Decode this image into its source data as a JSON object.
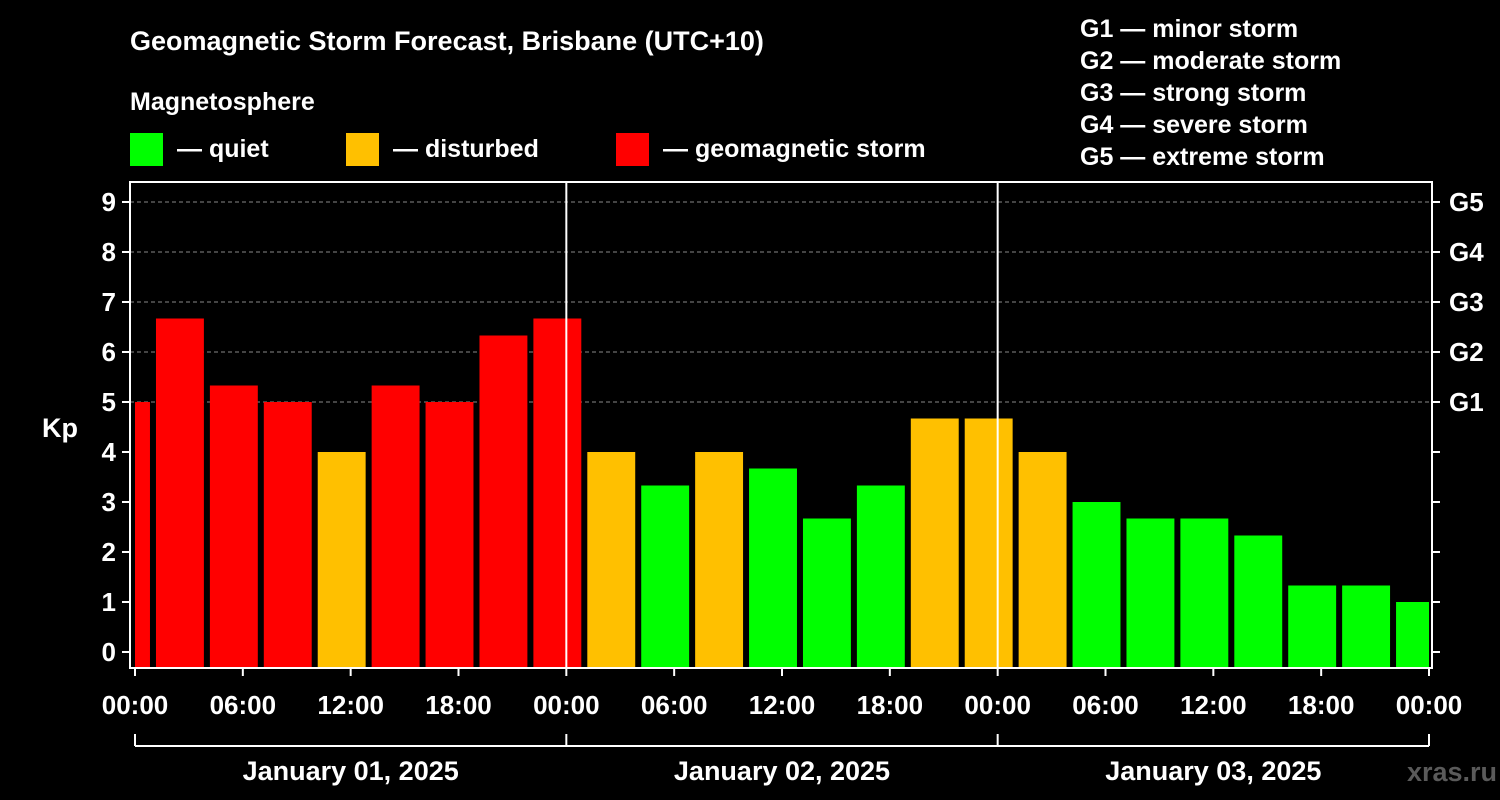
{
  "title": "Geomagnetic Storm Forecast, Brisbane (UTC+10)",
  "legend": {
    "heading": "Magnetosphere",
    "items": [
      {
        "label": "— quiet",
        "color": "#00ff00"
      },
      {
        "label": "— disturbed",
        "color": "#ffc000"
      },
      {
        "label": "— geomagnetic storm",
        "color": "#ff0000"
      }
    ]
  },
  "g_scale": [
    "G1 — minor storm",
    "G2 — moderate storm",
    "G3 — strong storm",
    "G4 — severe storm",
    "G5 — extreme storm"
  ],
  "watermark": "xras.ru",
  "chart_data": {
    "type": "bar",
    "ylabel": "Kp",
    "ylim": [
      0,
      9
    ],
    "yticks": [
      0,
      1,
      2,
      3,
      4,
      5,
      6,
      7,
      8,
      9
    ],
    "right_ticks": [
      {
        "value": 5,
        "label": "G1"
      },
      {
        "value": 6,
        "label": "G2"
      },
      {
        "value": 7,
        "label": "G3"
      },
      {
        "value": 8,
        "label": "G4"
      },
      {
        "value": 9,
        "label": "G5"
      }
    ],
    "grid": true,
    "xlim_hours": [
      0,
      72
    ],
    "xticks_hours": [
      0,
      6,
      12,
      18,
      24,
      30,
      36,
      42,
      48,
      54,
      60,
      66,
      72
    ],
    "xtick_labels": [
      "00:00",
      "06:00",
      "12:00",
      "18:00",
      "00:00",
      "06:00",
      "12:00",
      "18:00",
      "00:00",
      "06:00",
      "12:00",
      "18:00",
      "00:00"
    ],
    "days": [
      {
        "label": "January 01, 2025",
        "start_hour": 0,
        "end_hour": 24
      },
      {
        "label": "January 02, 2025",
        "start_hour": 24,
        "end_hour": 48
      },
      {
        "label": "January 03, 2025",
        "start_hour": 48,
        "end_hour": 72
      }
    ],
    "bars": [
      {
        "start_hour": 0,
        "end_hour": 1,
        "kp": 5.0,
        "level": "storm"
      },
      {
        "start_hour": 1,
        "end_hour": 4,
        "kp": 6.67,
        "level": "storm"
      },
      {
        "start_hour": 4,
        "end_hour": 7,
        "kp": 5.33,
        "level": "storm"
      },
      {
        "start_hour": 7,
        "end_hour": 10,
        "kp": 5.0,
        "level": "storm"
      },
      {
        "start_hour": 10,
        "end_hour": 13,
        "kp": 4.0,
        "level": "disturbed"
      },
      {
        "start_hour": 13,
        "end_hour": 16,
        "kp": 5.33,
        "level": "storm"
      },
      {
        "start_hour": 16,
        "end_hour": 19,
        "kp": 5.0,
        "level": "storm"
      },
      {
        "start_hour": 19,
        "end_hour": 22,
        "kp": 6.33,
        "level": "storm"
      },
      {
        "start_hour": 22,
        "end_hour": 25,
        "kp": 6.67,
        "level": "storm"
      },
      {
        "start_hour": 25,
        "end_hour": 28,
        "kp": 4.0,
        "level": "disturbed"
      },
      {
        "start_hour": 28,
        "end_hour": 31,
        "kp": 3.33,
        "level": "quiet"
      },
      {
        "start_hour": 31,
        "end_hour": 34,
        "kp": 4.0,
        "level": "disturbed"
      },
      {
        "start_hour": 34,
        "end_hour": 37,
        "kp": 3.67,
        "level": "quiet"
      },
      {
        "start_hour": 37,
        "end_hour": 40,
        "kp": 2.67,
        "level": "quiet"
      },
      {
        "start_hour": 40,
        "end_hour": 43,
        "kp": 3.33,
        "level": "quiet"
      },
      {
        "start_hour": 43,
        "end_hour": 46,
        "kp": 4.67,
        "level": "disturbed"
      },
      {
        "start_hour": 46,
        "end_hour": 49,
        "kp": 4.67,
        "level": "disturbed"
      },
      {
        "start_hour": 49,
        "end_hour": 52,
        "kp": 4.0,
        "level": "disturbed"
      },
      {
        "start_hour": 52,
        "end_hour": 55,
        "kp": 3.0,
        "level": "quiet"
      },
      {
        "start_hour": 55,
        "end_hour": 58,
        "kp": 2.67,
        "level": "quiet"
      },
      {
        "start_hour": 58,
        "end_hour": 61,
        "kp": 2.67,
        "level": "quiet"
      },
      {
        "start_hour": 61,
        "end_hour": 64,
        "kp": 2.33,
        "level": "quiet"
      },
      {
        "start_hour": 64,
        "end_hour": 67,
        "kp": 1.33,
        "level": "quiet"
      },
      {
        "start_hour": 67,
        "end_hour": 70,
        "kp": 1.33,
        "level": "quiet"
      },
      {
        "start_hour": 70,
        "end_hour": 72,
        "kp": 1.0,
        "level": "quiet"
      }
    ],
    "level_colors": {
      "quiet": "#00ff00",
      "disturbed": "#ffc000",
      "storm": "#ff0000"
    }
  }
}
